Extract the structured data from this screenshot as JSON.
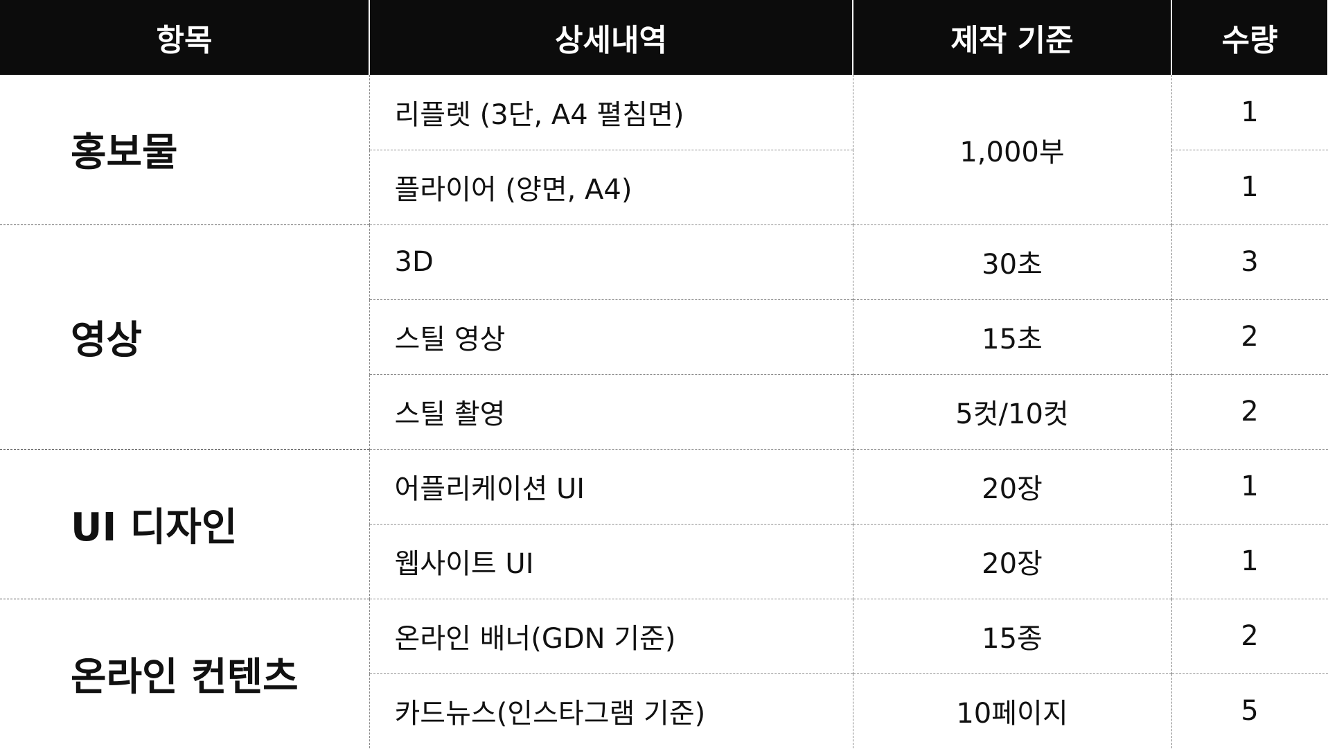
{
  "header": {
    "item": "항목",
    "detail": "상세내역",
    "standard": "제작 기준",
    "quantity": "수량"
  },
  "groups": [
    {
      "category": "홍보물",
      "rows": [
        {
          "detail": "리플렛 (3단, A4 펼침면)",
          "standard": "1,000부",
          "quantity": "1"
        },
        {
          "detail": "플라이어 (양면, A4)",
          "standard": "1,000부",
          "quantity": "1"
        }
      ]
    },
    {
      "category": "영상",
      "rows": [
        {
          "detail": "3D",
          "standard": "30초",
          "quantity": "3"
        },
        {
          "detail": "스틸 영상",
          "standard": "15초",
          "quantity": "2"
        },
        {
          "detail": "스틸 촬영",
          "standard": "5컷/10컷",
          "quantity": "2"
        }
      ]
    },
    {
      "category": "UI 디자인",
      "rows": [
        {
          "detail": "어플리케이션 UI",
          "standard": "20장",
          "quantity": "1"
        },
        {
          "detail": "웹사이트 UI",
          "standard": "20장",
          "quantity": "1"
        }
      ]
    },
    {
      "category": "온라인 컨텐츠",
      "rows": [
        {
          "detail": "온라인 배너(GDN 기준)",
          "standard": "15종",
          "quantity": "2"
        },
        {
          "detail": "카드뉴스(인스타그램 기준)",
          "standard": "10페이지",
          "quantity": "5"
        }
      ]
    }
  ],
  "colors": {
    "header_background": "#0c0c0c",
    "header_text": "#ffffff",
    "body_text": "#111111",
    "grid_line": "#8a8a8a"
  }
}
